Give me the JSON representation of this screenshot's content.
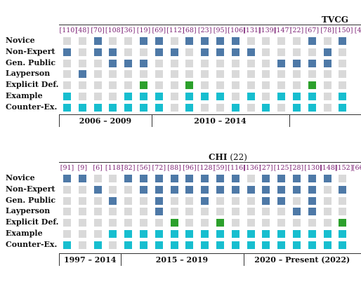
{
  "row_labels": [
    "Novice",
    "Non-Expert",
    "Gen. Public",
    "Layperson",
    "Explicit Def.",
    "Example",
    "Counter-Ex."
  ],
  "colors": {
    "filled_blue": "#4e79a7",
    "filled_green": "#2ca02c",
    "filled_cyan": "#17becf",
    "empty": "#d9d9d9",
    "ref_text": "#7a1e73"
  },
  "panels": [
    {
      "title": "TVCG",
      "count": "",
      "refs": [
        "[110]",
        "[48]",
        "[70]",
        "[108]",
        "[36]",
        "[19]",
        "[69]",
        "[112]",
        "[68]",
        "[23]",
        "[95]",
        "[106]",
        "[131]",
        "[139]",
        "[147]",
        "[22]",
        "[67]",
        "[78]",
        "[150]",
        "[4"
      ],
      "rows": [
        [
          0,
          0,
          1,
          0,
          0,
          1,
          1,
          0,
          1,
          1,
          1,
          1,
          0,
          0,
          0,
          0,
          1,
          0,
          1,
          1
        ],
        [
          1,
          0,
          1,
          1,
          0,
          0,
          1,
          1,
          0,
          1,
          1,
          1,
          1,
          0,
          0,
          0,
          0,
          1,
          0,
          0
        ],
        [
          0,
          0,
          0,
          1,
          1,
          1,
          0,
          0,
          0,
          0,
          0,
          0,
          0,
          0,
          1,
          1,
          1,
          1,
          0,
          0
        ],
        [
          0,
          1,
          0,
          0,
          0,
          0,
          0,
          0,
          0,
          0,
          0,
          0,
          0,
          0,
          0,
          0,
          0,
          0,
          0,
          0
        ],
        [
          0,
          0,
          0,
          0,
          0,
          2,
          0,
          0,
          2,
          0,
          0,
          0,
          0,
          0,
          0,
          0,
          2,
          0,
          0,
          2
        ],
        [
          3,
          0,
          0,
          0,
          3,
          3,
          3,
          0,
          3,
          3,
          3,
          0,
          3,
          0,
          3,
          3,
          3,
          0,
          3,
          3
        ],
        [
          3,
          3,
          3,
          3,
          3,
          3,
          3,
          0,
          3,
          0,
          0,
          3,
          0,
          3,
          0,
          3,
          3,
          0,
          3,
          3
        ]
      ],
      "periods": [
        {
          "label": "2006 – 2009",
          "start": 0,
          "end": 5
        },
        {
          "label": "2010 – 2014",
          "start": 6,
          "end": 14
        },
        {
          "label": "",
          "start": 15,
          "end": 19
        }
      ]
    },
    {
      "title": "CHI",
      "count": "(22)",
      "refs": [
        "[91]",
        "[9]",
        "[6]",
        "[118]",
        "[82]",
        "[56]",
        "[72]",
        "[88]",
        "[96]",
        "[128]",
        "[59]",
        "[116]",
        "[136]",
        "[27]",
        "[125]",
        "[28]",
        "[130]",
        "[148]",
        "[152]",
        "[66"
      ],
      "rows": [
        [
          1,
          1,
          0,
          0,
          1,
          1,
          1,
          1,
          1,
          1,
          1,
          1,
          0,
          1,
          1,
          1,
          1,
          1,
          0,
          1
        ],
        [
          0,
          0,
          1,
          0,
          0,
          1,
          1,
          1,
          1,
          1,
          1,
          1,
          1,
          1,
          1,
          1,
          1,
          0,
          1,
          1
        ],
        [
          0,
          0,
          0,
          1,
          0,
          0,
          1,
          0,
          0,
          1,
          0,
          0,
          0,
          1,
          1,
          0,
          1,
          0,
          0,
          0
        ],
        [
          0,
          0,
          0,
          0,
          0,
          0,
          1,
          0,
          0,
          0,
          0,
          0,
          0,
          0,
          0,
          1,
          1,
          0,
          0,
          0
        ],
        [
          0,
          0,
          0,
          0,
          0,
          0,
          0,
          2,
          0,
          0,
          2,
          0,
          0,
          0,
          0,
          0,
          0,
          0,
          2,
          0
        ],
        [
          0,
          0,
          0,
          3,
          3,
          3,
          3,
          3,
          3,
          3,
          3,
          3,
          3,
          3,
          3,
          3,
          3,
          3,
          3,
          3
        ],
        [
          3,
          0,
          3,
          0,
          3,
          3,
          3,
          3,
          3,
          3,
          3,
          3,
          3,
          3,
          3,
          3,
          3,
          3,
          3,
          3
        ]
      ],
      "periods": [
        {
          "label": "1997 – 2014",
          "start": 0,
          "end": 3
        },
        {
          "label": "2015 – 2019",
          "start": 4,
          "end": 11
        },
        {
          "label": "2020 – Present (2022)",
          "start": 12,
          "end": 19
        }
      ]
    }
  ]
}
